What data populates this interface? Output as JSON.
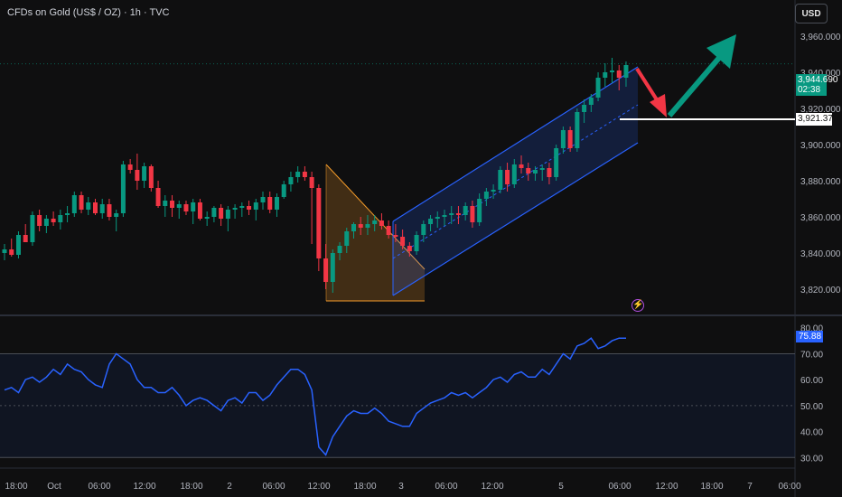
{
  "header": {
    "title": "CFDs on Gold (US$ / OZ) · 1h · TVC",
    "currency": "USD"
  },
  "price_badge": {
    "price": "3,944.690",
    "countdown": "02:38"
  },
  "level_badge": "3,921.374",
  "rsi_badge": "75.88",
  "colors": {
    "up": "#089981",
    "down": "#f23645",
    "channel": "#2962ff",
    "triangle": "#f59c2a",
    "rsi_line": "#2962ff",
    "level": "#ffffff"
  },
  "icons": [
    "flash-icon",
    "arrow-up-icon",
    "arrow-down-icon"
  ],
  "chart_data": [
    {
      "type": "candlestick",
      "name": "price",
      "ylim": [
        3810,
        3975
      ],
      "y_ticks": [
        "3,960.000",
        "3,940.000",
        "3,920.000",
        "3,900.000",
        "3,880.000",
        "3,860.000",
        "3,840.000",
        "3,820.000"
      ],
      "x_ticks": [
        "18:00",
        "Oct",
        "06:00",
        "12:00",
        "18:00",
        "2",
        "06:00",
        "12:00",
        "18:00",
        "3",
        "06:00",
        "12:00",
        "5",
        "06:00",
        "12:00",
        "18:00",
        "7",
        "06:00"
      ],
      "candles": [
        [
          3840,
          3845,
          3836,
          3842
        ],
        [
          3842,
          3848,
          3838,
          3839
        ],
        [
          3839,
          3852,
          3837,
          3850
        ],
        [
          3850,
          3856,
          3846,
          3846
        ],
        [
          3846,
          3863,
          3844,
          3861
        ],
        [
          3861,
          3864,
          3852,
          3855
        ],
        [
          3855,
          3861,
          3851,
          3859
        ],
        [
          3859,
          3863,
          3855,
          3857
        ],
        [
          3857,
          3864,
          3853,
          3861
        ],
        [
          3861,
          3866,
          3857,
          3862
        ],
        [
          3862,
          3874,
          3860,
          3872
        ],
        [
          3872,
          3874,
          3862,
          3864
        ],
        [
          3864,
          3871,
          3861,
          3868
        ],
        [
          3868,
          3870,
          3861,
          3862
        ],
        [
          3862,
          3870,
          3859,
          3867
        ],
        [
          3867,
          3870,
          3858,
          3860
        ],
        [
          3860,
          3864,
          3852,
          3862
        ],
        [
          3862,
          3891,
          3860,
          3889
        ],
        [
          3889,
          3892,
          3884,
          3886
        ],
        [
          3886,
          3895,
          3875,
          3880
        ],
        [
          3880,
          3890,
          3876,
          3888
        ],
        [
          3888,
          3889,
          3874,
          3876
        ],
        [
          3876,
          3880,
          3865,
          3866
        ],
        [
          3866,
          3872,
          3860,
          3869
        ],
        [
          3869,
          3872,
          3860,
          3865
        ],
        [
          3865,
          3869,
          3859,
          3867
        ],
        [
          3867,
          3869,
          3861,
          3863
        ],
        [
          3863,
          3870,
          3856,
          3868
        ],
        [
          3868,
          3870,
          3858,
          3859
        ],
        [
          3859,
          3863,
          3855,
          3860
        ],
        [
          3860,
          3866,
          3857,
          3865
        ],
        [
          3865,
          3867,
          3855,
          3859
        ],
        [
          3859,
          3866,
          3852,
          3864
        ],
        [
          3864,
          3867,
          3859,
          3865
        ],
        [
          3865,
          3868,
          3860,
          3866
        ],
        [
          3866,
          3869,
          3861,
          3864
        ],
        [
          3864,
          3870,
          3858,
          3868
        ],
        [
          3868,
          3874,
          3864,
          3871
        ],
        [
          3871,
          3874,
          3862,
          3864
        ],
        [
          3864,
          3873,
          3860,
          3871
        ],
        [
          3871,
          3880,
          3870,
          3878
        ],
        [
          3878,
          3885,
          3874,
          3882
        ],
        [
          3882,
          3888,
          3879,
          3885
        ],
        [
          3885,
          3888,
          3880,
          3882
        ],
        [
          3882,
          3885,
          3845,
          3876
        ],
        [
          3876,
          3878,
          3830,
          3837
        ],
        [
          3837,
          3845,
          3820,
          3824
        ],
        [
          3824,
          3842,
          3818,
          3840
        ],
        [
          3840,
          3846,
          3836,
          3844
        ],
        [
          3844,
          3854,
          3840,
          3852
        ],
        [
          3852,
          3857,
          3848,
          3856
        ],
        [
          3856,
          3860,
          3850,
          3854
        ],
        [
          3854,
          3861,
          3850,
          3856
        ],
        [
          3856,
          3861,
          3852,
          3858
        ],
        [
          3858,
          3862,
          3853,
          3855
        ],
        [
          3855,
          3858,
          3848,
          3850
        ],
        [
          3850,
          3856,
          3846,
          3849
        ],
        [
          3849,
          3853,
          3842,
          3844
        ],
        [
          3844,
          3846,
          3838,
          3841
        ],
        [
          3841,
          3852,
          3839,
          3850
        ],
        [
          3850,
          3858,
          3846,
          3856
        ],
        [
          3856,
          3861,
          3852,
          3859
        ],
        [
          3859,
          3863,
          3854,
          3860
        ],
        [
          3860,
          3864,
          3855,
          3861
        ],
        [
          3861,
          3866,
          3856,
          3862
        ],
        [
          3862,
          3866,
          3856,
          3861
        ],
        [
          3861,
          3868,
          3858,
          3866
        ],
        [
          3866,
          3869,
          3854,
          3857
        ],
        [
          3857,
          3873,
          3855,
          3870
        ],
        [
          3870,
          3876,
          3866,
          3874
        ],
        [
          3874,
          3878,
          3870,
          3875
        ],
        [
          3875,
          3888,
          3873,
          3886
        ],
        [
          3886,
          3890,
          3874,
          3878
        ],
        [
          3878,
          3892,
          3876,
          3889
        ],
        [
          3889,
          3894,
          3884,
          3887
        ],
        [
          3887,
          3890,
          3880,
          3884
        ],
        [
          3884,
          3888,
          3880,
          3886
        ],
        [
          3886,
          3889,
          3880,
          3887
        ],
        [
          3887,
          3890,
          3878,
          3882
        ],
        [
          3882,
          3900,
          3880,
          3898
        ],
        [
          3898,
          3910,
          3895,
          3908
        ],
        [
          3908,
          3910,
          3896,
          3898
        ],
        [
          3898,
          3920,
          3896,
          3918
        ],
        [
          3918,
          3925,
          3912,
          3922
        ],
        [
          3922,
          3928,
          3918,
          3926
        ],
        [
          3926,
          3940,
          3924,
          3937
        ],
        [
          3937,
          3945,
          3932,
          3940
        ],
        [
          3940,
          3948,
          3934,
          3941
        ],
        [
          3941,
          3944,
          3930,
          3937
        ],
        [
          3937,
          3946,
          3932,
          3944
        ]
      ]
    },
    {
      "type": "line",
      "name": "RSI",
      "ylim": [
        28,
        82
      ],
      "y_ticks": [
        "80.00",
        "70.00",
        "60.00",
        "50.00",
        "40.00",
        "30.00"
      ],
      "bands": [
        30,
        50,
        70
      ],
      "values": [
        56,
        57,
        55,
        60,
        61,
        59,
        61,
        64,
        62,
        66,
        64,
        63,
        60,
        58,
        57,
        66,
        70,
        68,
        66,
        60,
        57,
        57,
        55,
        55,
        57,
        54,
        50,
        52,
        53,
        52,
        50,
        48,
        52,
        53,
        51,
        55,
        55,
        52,
        54,
        58,
        61,
        64,
        64,
        62,
        56,
        34,
        31,
        38,
        42,
        46,
        48,
        47,
        47,
        49,
        47,
        44,
        43,
        42,
        42,
        47,
        49,
        51,
        52,
        53,
        55,
        54,
        55,
        53,
        55,
        57,
        60,
        61,
        59,
        62,
        63,
        61,
        61,
        64,
        62,
        66,
        70,
        68,
        73,
        74,
        76,
        72,
        73,
        75,
        76,
        76
      ]
    }
  ]
}
